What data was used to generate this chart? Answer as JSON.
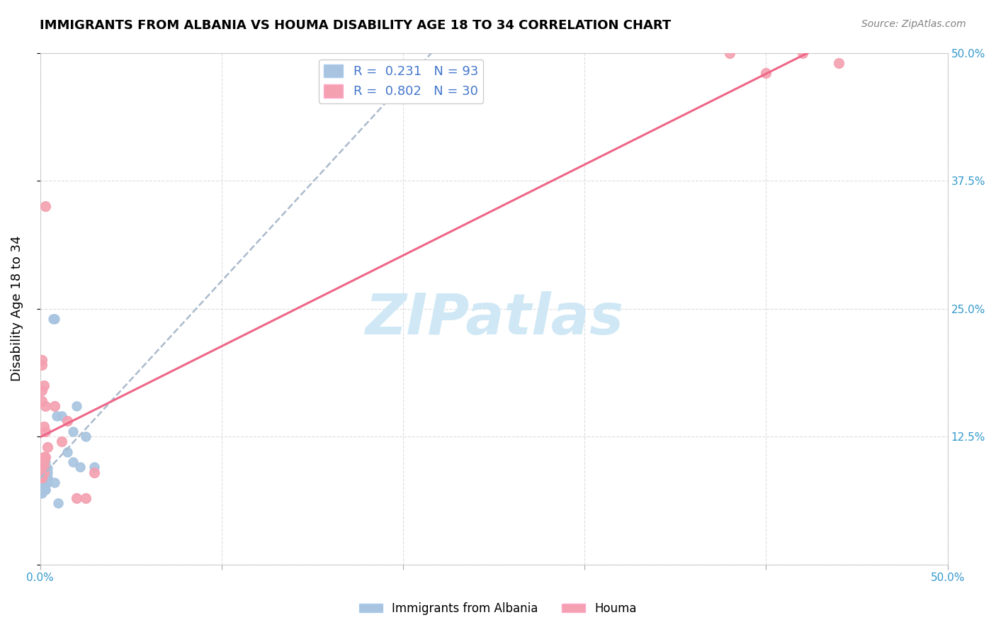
{
  "title": "IMMIGRANTS FROM ALBANIA VS HOUMA DISABILITY AGE 18 TO 34 CORRELATION CHART",
  "source": "Source: ZipAtlas.com",
  "ylabel": "Disability Age 18 to 34",
  "xlim": [
    0,
    0.5
  ],
  "ylim": [
    0,
    0.5
  ],
  "xticks": [
    0.0,
    0.1,
    0.2,
    0.3,
    0.4,
    0.5
  ],
  "yticks": [
    0.0,
    0.125,
    0.25,
    0.375,
    0.5
  ],
  "xticklabels": [
    "0.0%",
    "",
    "",
    "",
    "",
    "50.0%"
  ],
  "yticklabels": [
    "",
    "12.5%",
    "25.0%",
    "37.5%",
    "50.0%"
  ],
  "blue_R": 0.231,
  "blue_N": 93,
  "pink_R": 0.802,
  "pink_N": 30,
  "blue_color": "#a8c4e0",
  "pink_color": "#f4a0b0",
  "pink_line_color": "#ee6688",
  "dashed_line_color": "#aabbcc",
  "blue_line_color": "#4477aa",
  "grid_color": "#dddddd",
  "watermark_text": "ZIPatlas",
  "watermark_color": "#d0e8f5",
  "legend_color": "#4477cc",
  "blue_scatter_x": [
    0.001,
    0.002,
    0.001,
    0.003,
    0.004,
    0.001,
    0.002,
    0.002,
    0.003,
    0.001,
    0.001,
    0.002,
    0.003,
    0.001,
    0.002,
    0.001,
    0.003,
    0.004,
    0.002,
    0.001,
    0.001,
    0.002,
    0.001,
    0.003,
    0.002,
    0.001,
    0.004,
    0.002,
    0.003,
    0.001,
    0.002,
    0.001,
    0.003,
    0.001,
    0.002,
    0.003,
    0.002,
    0.001,
    0.001,
    0.004,
    0.001,
    0.002,
    0.001,
    0.003,
    0.001,
    0.002,
    0.001,
    0.003,
    0.002,
    0.001,
    0.001,
    0.002,
    0.001,
    0.001,
    0.003,
    0.002,
    0.001,
    0.001,
    0.002,
    0.003,
    0.001,
    0.002,
    0.001,
    0.003,
    0.002,
    0.001,
    0.002,
    0.001,
    0.003,
    0.004,
    0.001,
    0.002,
    0.001,
    0.003,
    0.002,
    0.001,
    0.003,
    0.002,
    0.001,
    0.002,
    0.008,
    0.007,
    0.009,
    0.012,
    0.015,
    0.018,
    0.02,
    0.025,
    0.03,
    0.018,
    0.022,
    0.008,
    0.01
  ],
  "blue_scatter_y": [
    0.08,
    0.095,
    0.09,
    0.1,
    0.085,
    0.092,
    0.088,
    0.093,
    0.087,
    0.091,
    0.08,
    0.082,
    0.089,
    0.084,
    0.086,
    0.091,
    0.083,
    0.09,
    0.085,
    0.088,
    0.092,
    0.086,
    0.094,
    0.087,
    0.089,
    0.091,
    0.084,
    0.093,
    0.086,
    0.082,
    0.088,
    0.09,
    0.085,
    0.092,
    0.087,
    0.091,
    0.083,
    0.089,
    0.086,
    0.094,
    0.087,
    0.09,
    0.085,
    0.088,
    0.092,
    0.086,
    0.091,
    0.083,
    0.087,
    0.09,
    0.078,
    0.074,
    0.076,
    0.072,
    0.08,
    0.082,
    0.075,
    0.07,
    0.077,
    0.073,
    0.071,
    0.075,
    0.079,
    0.073,
    0.077,
    0.074,
    0.076,
    0.072,
    0.078,
    0.08,
    0.082,
    0.084,
    0.086,
    0.088,
    0.09,
    0.092,
    0.094,
    0.083,
    0.087,
    0.085,
    0.24,
    0.24,
    0.145,
    0.145,
    0.11,
    0.13,
    0.155,
    0.125,
    0.095,
    0.1,
    0.095,
    0.08,
    0.06
  ],
  "pink_scatter_x": [
    0.001,
    0.002,
    0.001,
    0.003,
    0.001,
    0.002,
    0.003,
    0.008,
    0.012,
    0.015,
    0.001,
    0.002,
    0.001,
    0.004,
    0.001,
    0.002,
    0.003,
    0.02,
    0.025,
    0.03,
    0.001,
    0.002,
    0.001,
    0.003,
    0.001,
    0.002,
    0.38,
    0.4,
    0.42,
    0.44
  ],
  "pink_scatter_y": [
    0.085,
    0.1,
    0.195,
    0.155,
    0.16,
    0.135,
    0.13,
    0.155,
    0.12,
    0.14,
    0.09,
    0.105,
    0.085,
    0.115,
    0.09,
    0.095,
    0.105,
    0.065,
    0.065,
    0.09,
    0.17,
    0.175,
    0.2,
    0.35,
    0.085,
    0.09,
    0.5,
    0.48,
    0.5,
    0.49
  ]
}
